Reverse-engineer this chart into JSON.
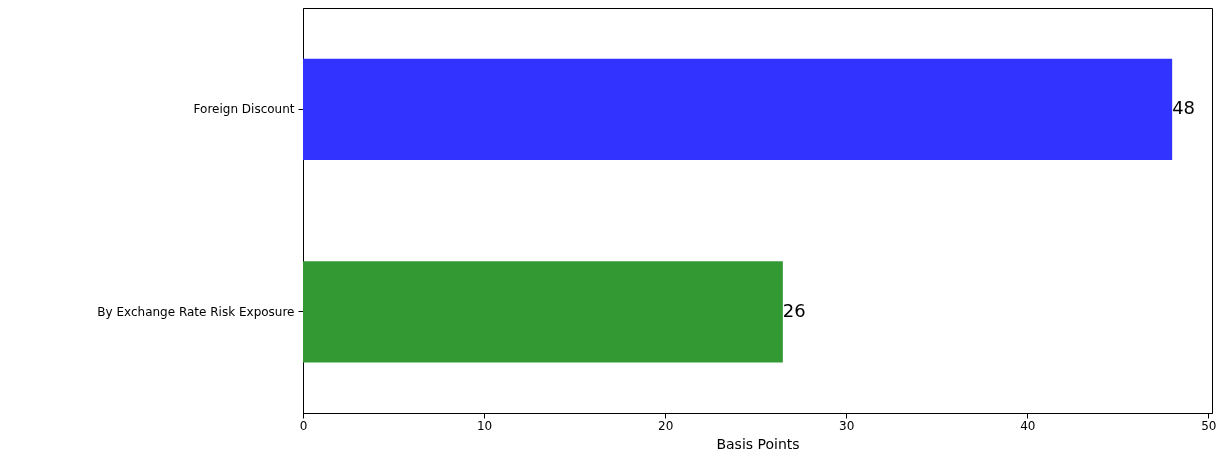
{
  "chart_data": {
    "type": "bar",
    "orientation": "horizontal",
    "categories": [
      "Foreign Discount",
      "By Exchange Rate Risk Exposure"
    ],
    "values": [
      48,
      26.5
    ],
    "colors": [
      "#3333ff",
      "#339933"
    ],
    "value_labels": [
      "48",
      "26"
    ],
    "xlabel": "Basis Points",
    "xlim": [
      0,
      50.2
    ],
    "xticks": [
      0,
      10,
      20,
      30,
      40,
      50
    ],
    "grid": false
  }
}
